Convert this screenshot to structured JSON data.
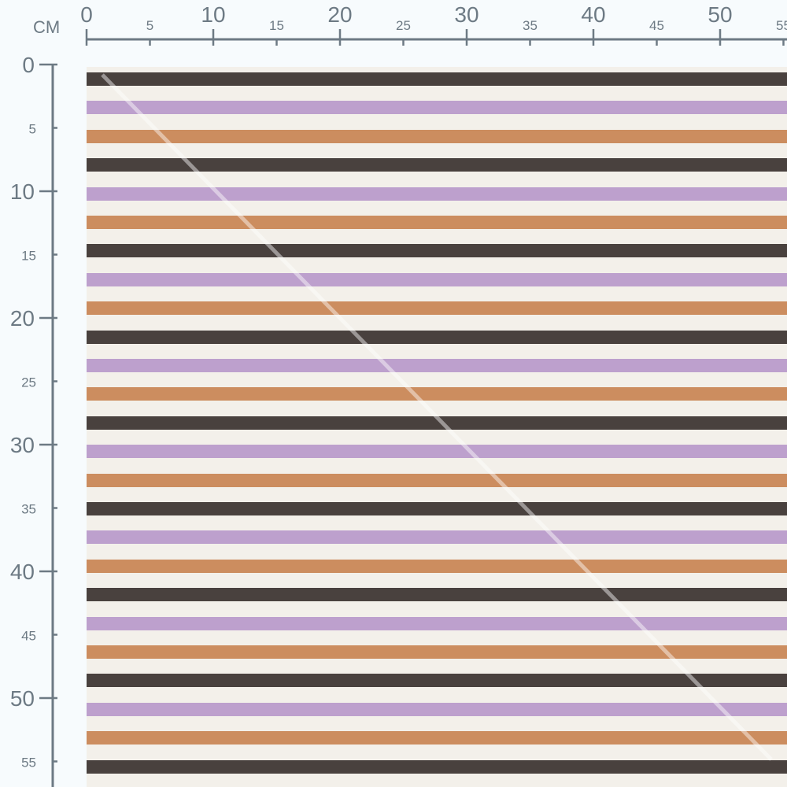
{
  "ruler": {
    "unit": "CM",
    "top_labels": [
      "0",
      "5",
      "10",
      "15",
      "20",
      "25",
      "30",
      "35",
      "40",
      "45",
      "50",
      "55"
    ],
    "left_labels": [
      "0",
      "5",
      "10",
      "15",
      "20",
      "25",
      "30",
      "35",
      "40",
      "45",
      "50",
      "55"
    ],
    "color": "#6d7a84"
  },
  "fabric": {
    "background": "#f3f0ea",
    "stripe_sequence": [
      "#3f3735",
      "#b99bcb",
      "#c98757"
    ],
    "stripe_sequence_names": [
      "dark-brown",
      "lilac",
      "orange"
    ],
    "stripe_count": 25
  }
}
